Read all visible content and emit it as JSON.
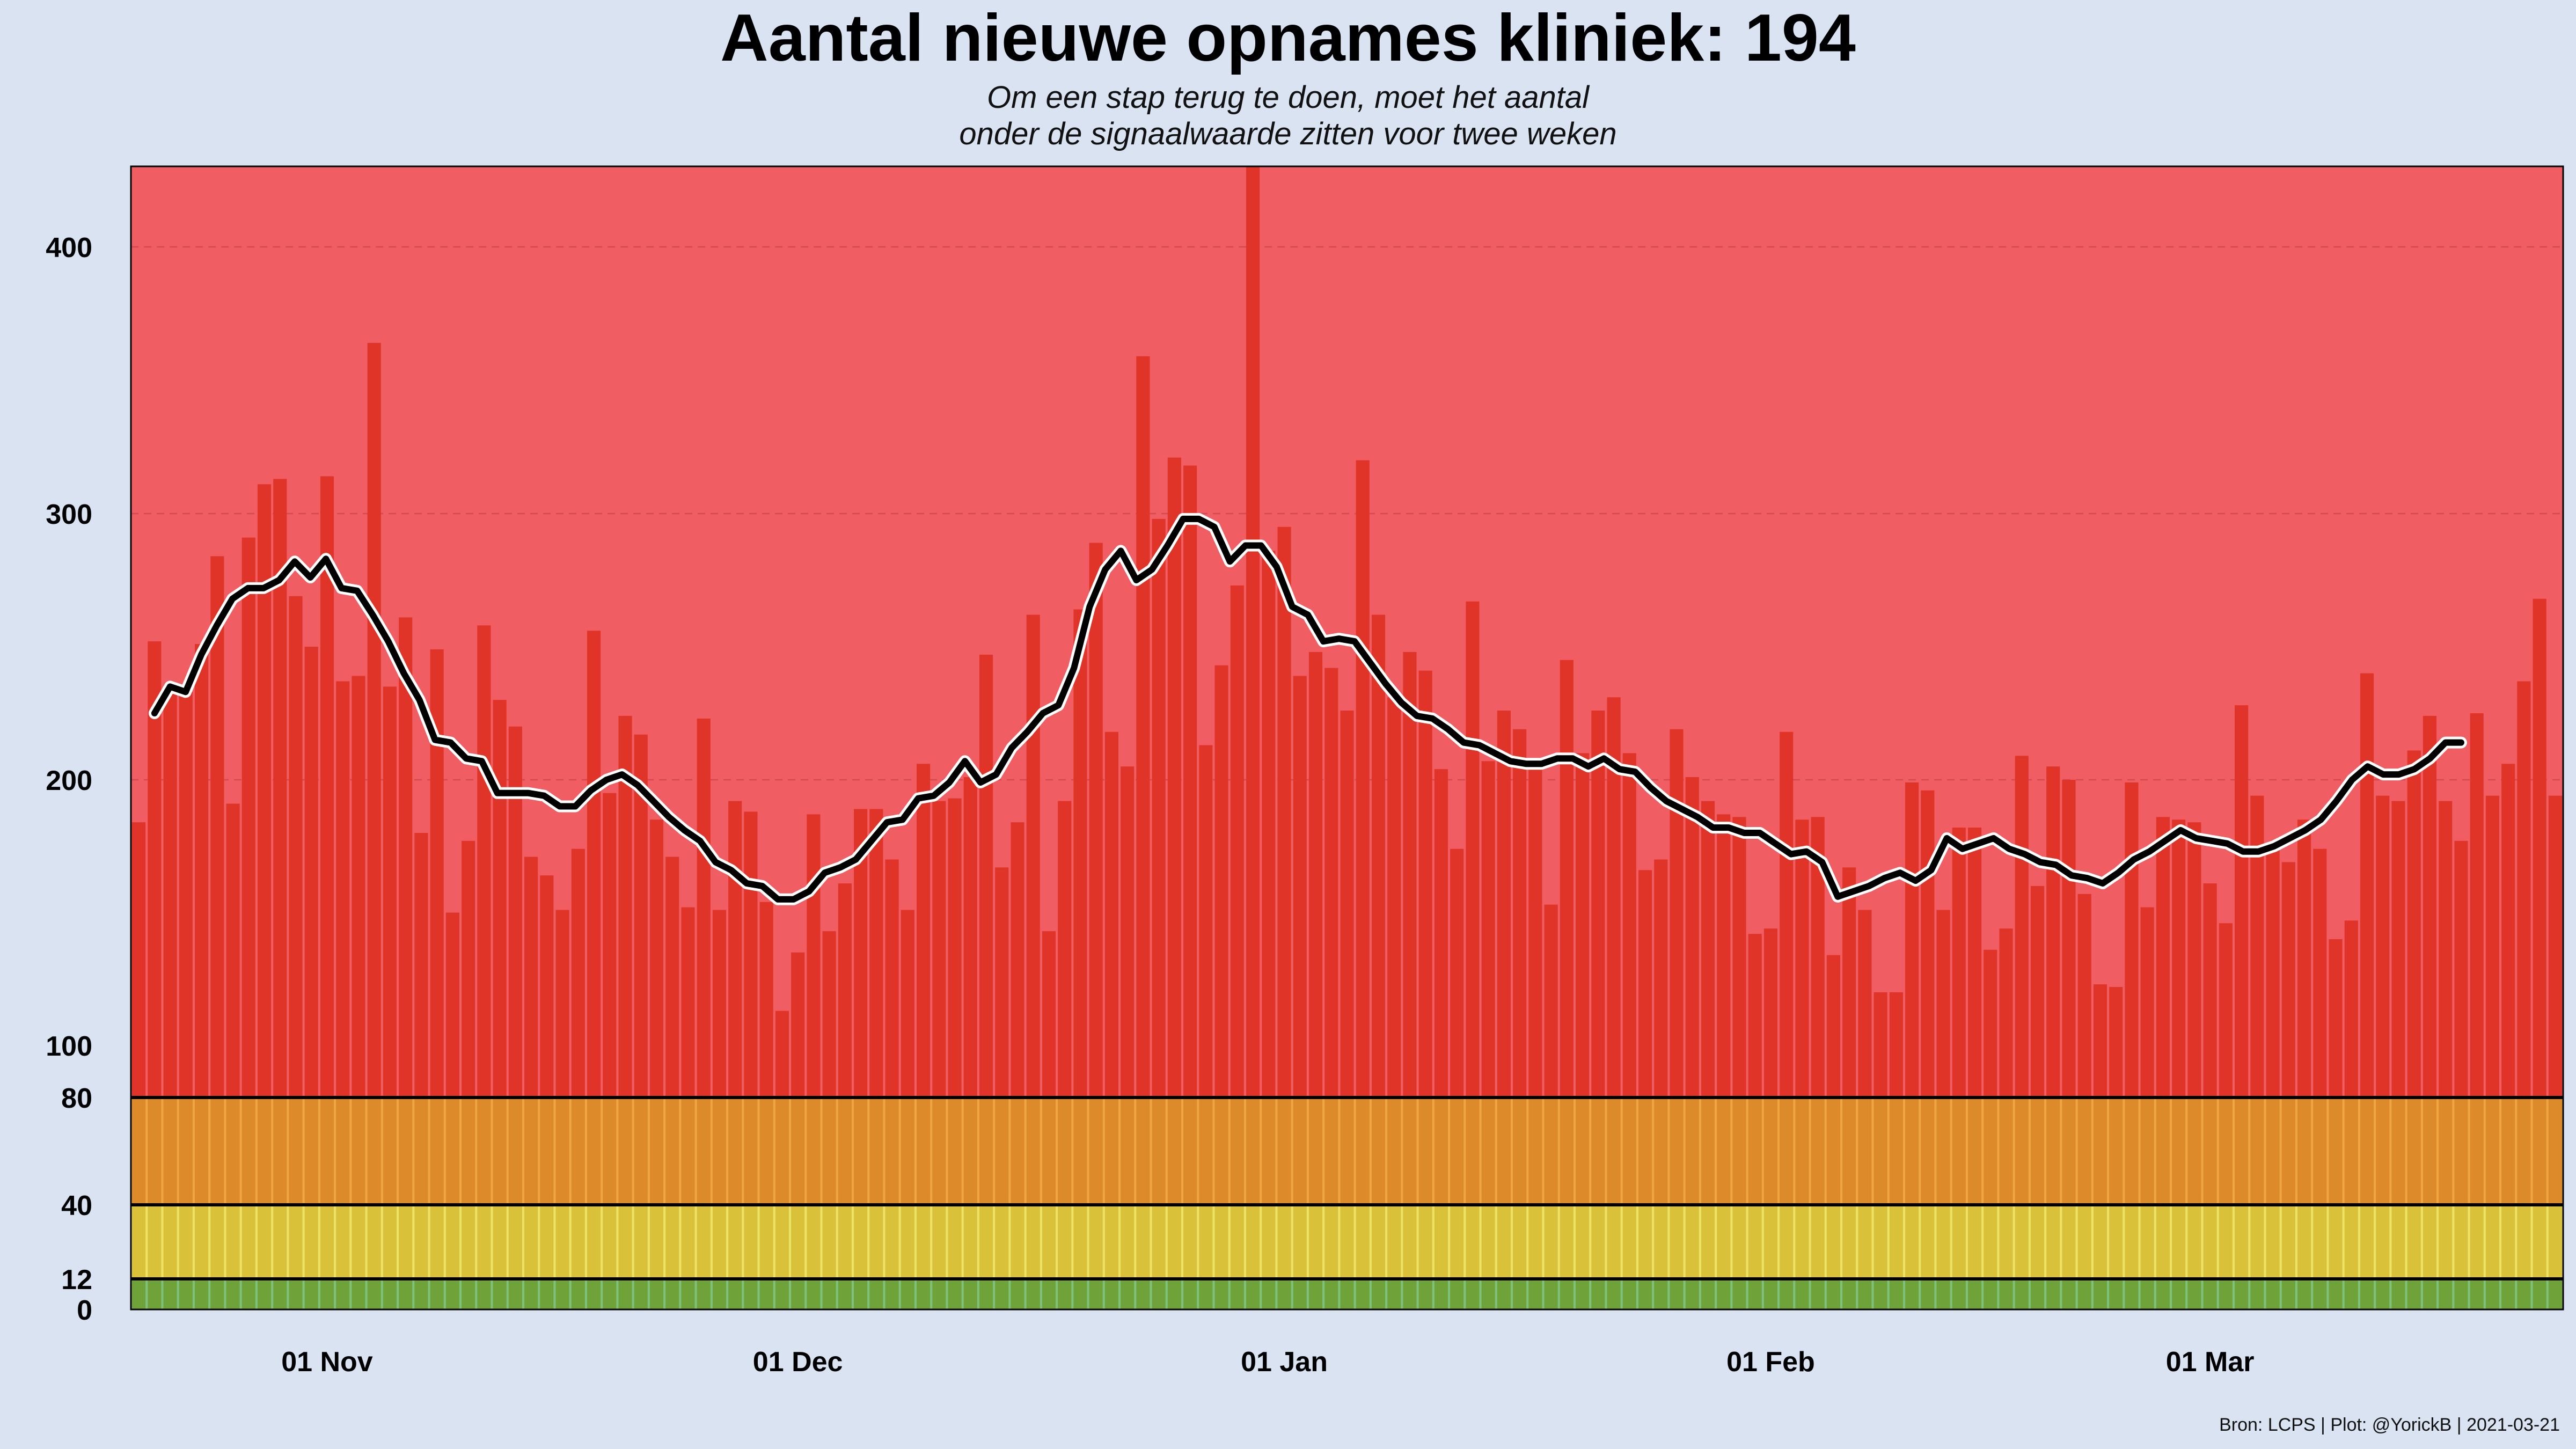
{
  "chart_data": {
    "type": "bar",
    "title": "Aantal nieuwe opnames kliniek:  194",
    "subtitle": [
      "Om een stap terug te doen, moet het aantal",
      "onder de signaalwaarde zitten voor twee weken"
    ],
    "xlabel": "",
    "ylabel": "",
    "x_start": "2020-10-20",
    "x_end": "2021-03-21",
    "x_tick_labels": [
      {
        "date": "2020-11-01",
        "label": "01 Nov"
      },
      {
        "date": "2020-12-01",
        "label": "01 Dec"
      },
      {
        "date": "2021-01-01",
        "label": "01 Jan"
      },
      {
        "date": "2021-02-01",
        "label": "01 Feb"
      },
      {
        "date": "2021-03-01",
        "label": "01 Mar"
      }
    ],
    "y_ticks": [
      0,
      12,
      40,
      80,
      100,
      200,
      300,
      400
    ],
    "y_scale": "piecewise: 0-100 expanded, 100-430 linear",
    "ylim": [
      0,
      430
    ],
    "grid": "dashed horizontal lines at 200, 300, 400",
    "thresholds": [
      12,
      40,
      80
    ],
    "bands": [
      {
        "from": 0,
        "to": 12,
        "color": "#7dc17d",
        "bar_color": "#6fa33a"
      },
      {
        "from": 12,
        "to": 40,
        "color": "#ece366",
        "bar_color": "#d9c23a"
      },
      {
        "from": 40,
        "to": 80,
        "color": "#f0a640",
        "bar_color": "#dc8a2a"
      },
      {
        "from": 80,
        "to": 430,
        "color": "#f05d63",
        "bar_color": "#e03428"
      }
    ],
    "values": [
      184,
      252,
      233,
      233,
      251,
      284,
      191,
      291,
      311,
      313,
      269,
      250,
      314,
      237,
      239,
      364,
      235,
      261,
      180,
      249,
      150,
      177,
      258,
      230,
      220,
      171,
      164,
      151,
      174,
      256,
      195,
      224,
      217,
      185,
      171,
      152,
      223,
      151,
      192,
      188,
      154,
      113,
      135,
      187,
      143,
      161,
      189,
      189,
      170,
      151,
      206,
      192,
      193,
      201,
      247,
      167,
      184,
      262,
      143,
      192,
      264,
      289,
      218,
      205,
      359,
      298,
      321,
      318,
      213,
      243,
      273,
      430,
      286,
      295,
      239,
      248,
      242,
      226,
      320,
      262,
      231,
      248,
      241,
      204,
      174,
      267,
      207,
      226,
      219,
      207,
      153,
      245,
      210,
      226,
      231,
      210,
      166,
      170,
      219,
      201,
      192,
      187,
      186,
      142,
      144,
      218,
      185,
      186,
      134,
      167,
      151,
      120,
      120,
      199,
      196,
      151,
      182,
      182,
      136,
      144,
      209,
      160,
      205,
      200,
      157,
      123,
      122,
      199,
      152,
      186,
      185,
      184,
      161,
      146,
      228,
      194,
      176,
      169,
      185,
      174,
      140,
      147,
      240,
      194,
      192,
      211,
      224,
      192,
      177,
      225,
      194,
      206,
      237,
      268,
      194
    ],
    "line_start_index": 1,
    "line_end_index": 148,
    "rolling_average": [
      225,
      235,
      233,
      247,
      258,
      268,
      272,
      272,
      275,
      282,
      276,
      283,
      272,
      271,
      262,
      252,
      240,
      230,
      215,
      214,
      208,
      207,
      195,
      195,
      195,
      194,
      190,
      190,
      196,
      200,
      202,
      198,
      192,
      186,
      181,
      177,
      169,
      166,
      161,
      160,
      155,
      155,
      158,
      165,
      167,
      170,
      177,
      184,
      185,
      193,
      194,
      199,
      207,
      199,
      202,
      212,
      218,
      225,
      228,
      242,
      265,
      279,
      286,
      275,
      279,
      288,
      298,
      298,
      295,
      282,
      288,
      288,
      280,
      265,
      262,
      252,
      253,
      252,
      244,
      236,
      229,
      224,
      223,
      219,
      214,
      213,
      210,
      207,
      206,
      206,
      208,
      208,
      205,
      208,
      204,
      203,
      197,
      192,
      189,
      186,
      182,
      182,
      180,
      180,
      176,
      172,
      173,
      169,
      156,
      158,
      160,
      163,
      165,
      162,
      166,
      178,
      174,
      176,
      178,
      174,
      172,
      169,
      168,
      164,
      163,
      161,
      165,
      170,
      173,
      177,
      181,
      178,
      177,
      176,
      173,
      173,
      175,
      178,
      181,
      185,
      192,
      200,
      205,
      202,
      202,
      204,
      208,
      214,
      214
    ]
  },
  "caption": "Bron: LCPS | Plot: @YorickB |  2021-03-21"
}
